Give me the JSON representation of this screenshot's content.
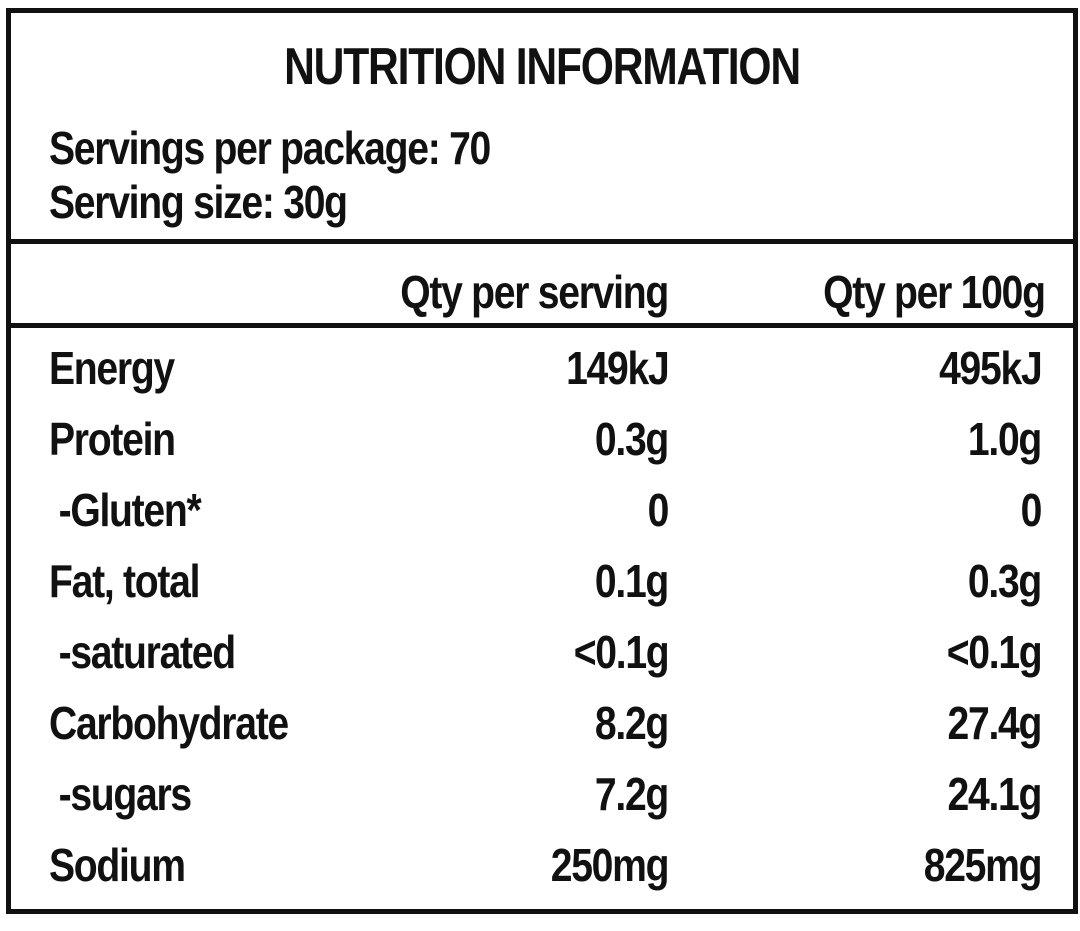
{
  "header": {
    "title": "NUTRITION INFORMATION",
    "servings": "Servings per package: 70",
    "serving_size": "Serving size: 30g"
  },
  "table": {
    "header": [
      "Qty per serving",
      "Qty per 100g"
    ],
    "rows": [
      [
        "Energy",
        "149kJ",
        "495kJ"
      ],
      [
        "Protein",
        "0.3g",
        "1.0g"
      ],
      [
        " -Gluten*",
        "0",
        "0"
      ],
      [
        "Fat, total",
        "0.1g",
        "0.3g"
      ],
      [
        " -saturated",
        "<0.1g",
        "<0.1g"
      ],
      [
        "Carbohydrate",
        "8.2g",
        "27.4g"
      ],
      [
        " -sugars",
        "7.2g",
        "24.1g"
      ],
      [
        "Sodium",
        "250mg",
        "825mg"
      ]
    ]
  }
}
